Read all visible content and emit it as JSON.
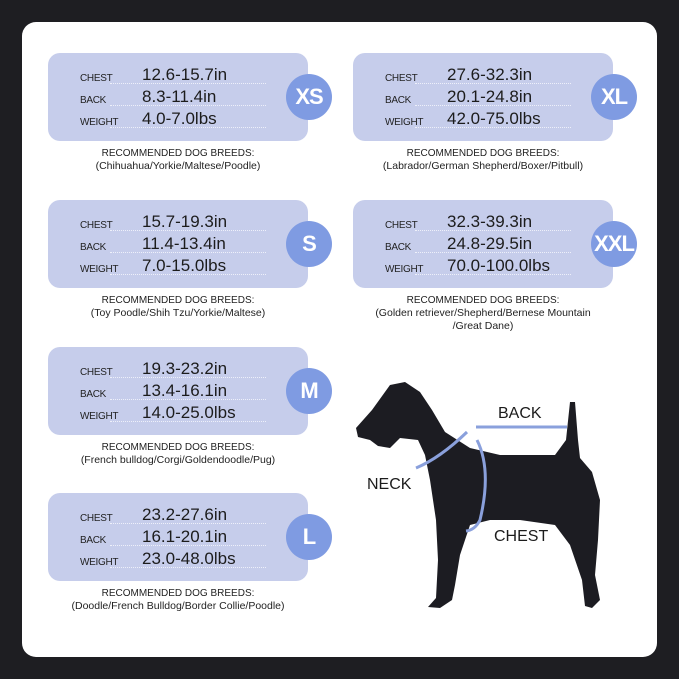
{
  "labels": {
    "chest": "CHEST",
    "back": "BACK",
    "weight": "WEIGHT",
    "recommended": "RECOMMENDED DOG BREEDS:"
  },
  "colors": {
    "card": "#c6cdeb",
    "badge": "#7f9be2",
    "measure_line": "#8aa0dc",
    "dog": "#1c1c22"
  },
  "sizes": [
    {
      "size": "XS",
      "chest": "12.6-15.7in",
      "back": "8.3-11.4in",
      "weight": "4.0-7.0lbs",
      "breeds": [
        "(Chihuahua/Yorkie/Maltese/Poodle)"
      ]
    },
    {
      "size": "XL",
      "chest": "27.6-32.3in",
      "back": "20.1-24.8in",
      "weight": "42.0-75.0lbs",
      "breeds": [
        "(Labrador/German Shepherd/Boxer/Pitbull)"
      ]
    },
    {
      "size": "S",
      "chest": "15.7-19.3in",
      "back": "11.4-13.4in",
      "weight": "7.0-15.0lbs",
      "breeds": [
        "(Toy Poodle/Shih Tzu/Yorkie/Maltese)"
      ]
    },
    {
      "size": "XXL",
      "chest": "32.3-39.3in",
      "back": "24.8-29.5in",
      "weight": "70.0-100.0lbs",
      "breeds": [
        "(Golden retriever/Shepherd/Bernese Mountain",
        "/Great Dane)"
      ]
    },
    {
      "size": "M",
      "chest": "19.3-23.2in",
      "back": "13.4-16.1in",
      "weight": "14.0-25.0lbs",
      "breeds": [
        "(French bulldog/Corgi/Goldendoodle/Pug)"
      ]
    },
    {
      "size": "L",
      "chest": "23.2-27.6in",
      "back": "16.1-20.1in",
      "weight": "23.0-48.0lbs",
      "breeds": [
        "(Doodle/French Bulldog/Border Collie/Poodle)"
      ]
    }
  ],
  "diagram": {
    "back": "BACK",
    "neck": "NECK",
    "chest": "CHEST"
  }
}
